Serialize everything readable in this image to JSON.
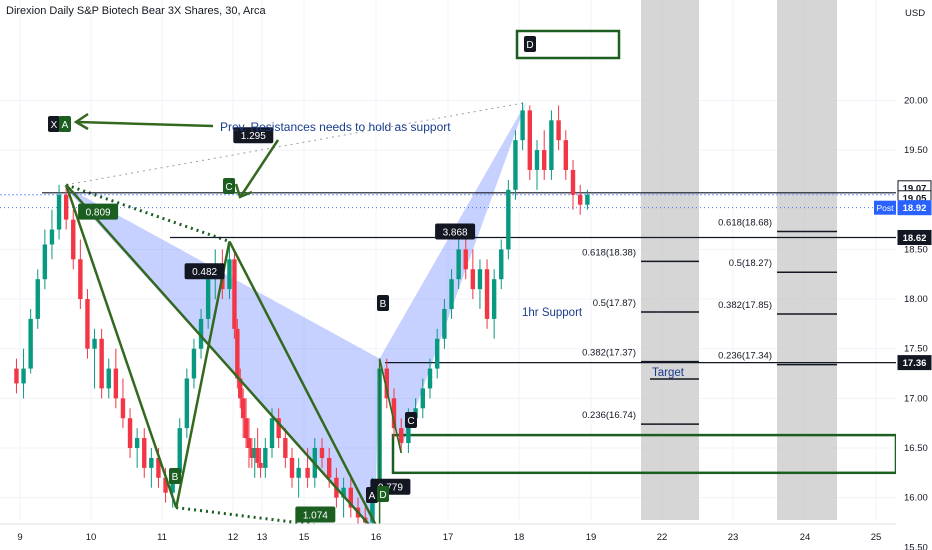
{
  "title": "Direxion Daily S&P Biotech Bear 3X Shares, 30, Arca",
  "currency": "USD",
  "chart_data": {
    "type": "candlestick",
    "y_ticks": [
      "15.50",
      "16.00",
      "16.50",
      "17.00",
      "17.50",
      "18.00",
      "18.50",
      "19.50",
      "20.00"
    ],
    "x_ticks": [
      "9",
      "10",
      "11",
      "12",
      "13",
      "15",
      "16",
      "17",
      "18",
      "19",
      "22",
      "23",
      "24",
      "25"
    ],
    "price_badges": [
      {
        "text": "19.07",
        "price": 19.07,
        "bg": "#ffffff",
        "fg": "#131722",
        "border": "#131722"
      },
      {
        "text": "19.05",
        "price": 19.05,
        "bg": "#ffffff",
        "fg": "#131722",
        "border": "#131722"
      },
      {
        "text": "18.92",
        "price": 18.92,
        "bg": "#2962ff",
        "fg": "#ffffff",
        "border": "#2962ff",
        "tag": "Post"
      },
      {
        "text": "18.62",
        "price": 18.62,
        "bg": "#131722",
        "fg": "#ffffff",
        "border": "#131722"
      },
      {
        "text": "17.36",
        "price": 17.36,
        "bg": "#131722",
        "fg": "#ffffff",
        "border": "#131722"
      }
    ],
    "pattern_points": [
      {
        "label": "X",
        "date": 9.6,
        "price": 19.15
      },
      {
        "label": "A",
        "date": 9.65,
        "price": 19.15
      },
      {
        "label": "B",
        "date": 11.2,
        "price": 15.9
      },
      {
        "label": "C",
        "date": 11.95,
        "price": 18.58
      },
      {
        "label": "A",
        "date": 15.95,
        "price": 15.65
      },
      {
        "label": "D",
        "date": 16.05,
        "price": 15.65
      },
      {
        "label": "B",
        "date": 16.05,
        "price": 17.4
      },
      {
        "label": "C",
        "date": 16.45,
        "price": 16.45
      },
      {
        "label": "D",
        "date": 18.1,
        "price": 19.98
      }
    ],
    "ratios": [
      {
        "text": "1.295",
        "date": 12.7,
        "price": 19.65
      },
      {
        "text": "0.809",
        "date": 10.1,
        "price": 18.88
      },
      {
        "text": "0.482",
        "date": 11.6,
        "price": 18.28
      },
      {
        "text": "1.074",
        "date": 13.8,
        "price": 15.83
      },
      {
        "text": "0.779",
        "date": 16.2,
        "price": 16.11
      },
      {
        "text": "3.868",
        "date": 17.1,
        "price": 18.68
      }
    ],
    "fib_levels_left": [
      {
        "text": "0.618(18.38)",
        "price": 18.38
      },
      {
        "text": "0.5(17.87)",
        "price": 17.87
      },
      {
        "text": "0.382(17.37)",
        "price": 17.37
      },
      {
        "text": "0.236(16.74)",
        "price": 16.74
      }
    ],
    "fib_levels_right": [
      {
        "text": "0.618(18.68)",
        "price": 18.68
      },
      {
        "text": "0.5(18.27)",
        "price": 18.27
      },
      {
        "text": "0.382(17.85)",
        "price": 17.85
      },
      {
        "text": "0.236(17.34)",
        "price": 17.34
      }
    ],
    "annotations": [
      {
        "text": "Prev. Resistances needs to hold as support",
        "date": 11.7,
        "price": 19.22
      },
      {
        "text": "1hr Support",
        "date": 17.4,
        "price": 17.42
      },
      {
        "text": "Target",
        "date": 22.1,
        "price": 16.8
      }
    ],
    "horizontal_lines": [
      19.07,
      18.62,
      17.36
    ],
    "candles": [
      [
        8.95,
        17.3,
        17.4,
        17.05,
        17.15
      ],
      [
        9.05,
        17.15,
        17.5,
        17.0,
        17.3
      ],
      [
        9.15,
        17.3,
        17.9,
        17.25,
        17.8
      ],
      [
        9.25,
        17.8,
        18.3,
        17.7,
        18.2
      ],
      [
        9.35,
        18.2,
        18.7,
        18.1,
        18.55
      ],
      [
        9.45,
        18.55,
        18.9,
        18.4,
        18.7
      ],
      [
        9.55,
        18.7,
        19.15,
        18.6,
        19.05
      ],
      [
        9.65,
        19.05,
        19.15,
        18.7,
        18.8
      ],
      [
        9.75,
        18.8,
        18.9,
        18.3,
        18.4
      ],
      [
        9.85,
        18.4,
        18.6,
        17.9,
        18.0
      ],
      [
        9.95,
        18.0,
        18.1,
        17.4,
        17.5
      ],
      [
        10.05,
        17.5,
        17.7,
        17.1,
        17.6
      ],
      [
        10.15,
        17.6,
        17.7,
        17.0,
        17.1
      ],
      [
        10.25,
        17.1,
        17.4,
        17.0,
        17.3
      ],
      [
        10.35,
        17.3,
        17.5,
        16.9,
        17.0
      ],
      [
        10.45,
        17.0,
        17.2,
        16.7,
        16.8
      ],
      [
        10.55,
        16.8,
        16.9,
        16.4,
        16.5
      ],
      [
        10.65,
        16.5,
        16.7,
        16.3,
        16.6
      ],
      [
        10.75,
        16.6,
        16.7,
        16.2,
        16.3
      ],
      [
        10.85,
        16.3,
        16.5,
        16.1,
        16.4
      ],
      [
        10.95,
        16.4,
        16.5,
        16.1,
        16.2
      ],
      [
        11.05,
        16.2,
        16.3,
        15.95,
        16.05
      ],
      [
        11.15,
        16.05,
        16.3,
        15.9,
        16.25
      ],
      [
        11.25,
        16.25,
        16.8,
        16.2,
        16.7
      ],
      [
        11.35,
        16.7,
        17.3,
        16.6,
        17.2
      ],
      [
        11.45,
        17.2,
        17.6,
        17.1,
        17.5
      ],
      [
        11.55,
        17.5,
        17.9,
        17.4,
        17.8
      ],
      [
        11.65,
        17.8,
        18.3,
        17.7,
        18.2
      ],
      [
        11.75,
        18.2,
        18.5,
        18.0,
        18.3
      ],
      [
        11.85,
        18.3,
        18.5,
        18.0,
        18.1
      ],
      [
        11.95,
        18.1,
        18.58,
        18.0,
        18.4
      ],
      [
        12.05,
        18.4,
        18.5,
        17.6,
        17.7
      ],
      [
        12.15,
        17.7,
        17.8,
        17.1,
        17.2
      ],
      [
        12.25,
        17.2,
        17.3,
        16.9,
        17.0
      ],
      [
        12.35,
        17.0,
        17.1,
        16.6,
        16.8
      ],
      [
        12.45,
        16.8,
        17.0,
        16.5,
        16.6
      ],
      [
        12.55,
        16.6,
        16.8,
        16.3,
        16.5
      ],
      [
        12.65,
        16.5,
        16.6,
        16.3,
        16.4
      ],
      [
        12.75,
        16.4,
        16.6,
        16.2,
        16.5
      ],
      [
        12.85,
        16.5,
        16.7,
        16.3,
        16.35
      ],
      [
        12.95,
        16.35,
        16.5,
        16.2,
        16.3
      ],
      [
        13.05,
        16.3,
        16.6,
        16.2,
        16.5
      ],
      [
        13.15,
        16.5,
        16.9,
        16.4,
        16.8
      ],
      [
        13.25,
        16.8,
        16.9,
        16.5,
        16.6
      ],
      [
        13.35,
        16.6,
        16.7,
        16.3,
        16.4
      ],
      [
        13.45,
        16.4,
        16.5,
        16.1,
        16.2
      ],
      [
        13.55,
        16.2,
        16.4,
        16.0,
        16.3
      ],
      [
        15.05,
        16.3,
        16.5,
        16.1,
        16.2
      ],
      [
        15.15,
        16.2,
        16.6,
        16.1,
        16.5
      ],
      [
        15.25,
        16.5,
        16.6,
        16.3,
        16.4
      ],
      [
        15.35,
        16.4,
        16.5,
        16.1,
        16.2
      ],
      [
        15.45,
        16.2,
        16.3,
        15.9,
        16.0
      ],
      [
        15.55,
        16.0,
        16.2,
        15.8,
        16.1
      ],
      [
        15.65,
        16.1,
        16.2,
        15.8,
        15.9
      ],
      [
        15.75,
        15.9,
        16.0,
        15.7,
        15.8
      ],
      [
        15.85,
        15.8,
        15.9,
        15.65,
        15.75
      ],
      [
        15.95,
        15.75,
        16.2,
        15.65,
        16.1
      ],
      [
        16.05,
        16.1,
        17.4,
        16.05,
        17.3
      ],
      [
        16.15,
        17.3,
        17.4,
        16.9,
        17.0
      ],
      [
        16.25,
        17.0,
        17.1,
        16.6,
        16.7
      ],
      [
        16.35,
        16.7,
        16.8,
        16.45,
        16.55
      ],
      [
        16.45,
        16.55,
        16.9,
        16.45,
        16.8
      ],
      [
        16.55,
        16.8,
        17.0,
        16.7,
        16.9
      ],
      [
        16.65,
        16.9,
        17.2,
        16.8,
        17.1
      ],
      [
        16.75,
        17.1,
        17.4,
        17.0,
        17.3
      ],
      [
        16.85,
        17.3,
        17.7,
        17.2,
        17.6
      ],
      [
        16.95,
        17.6,
        18.0,
        17.5,
        17.9
      ],
      [
        17.05,
        17.9,
        18.3,
        17.8,
        18.2
      ],
      [
        17.15,
        18.2,
        18.6,
        18.1,
        18.5
      ],
      [
        17.25,
        18.5,
        18.7,
        18.2,
        18.3
      ],
      [
        17.35,
        18.3,
        18.5,
        18.0,
        18.1
      ],
      [
        17.45,
        18.1,
        18.4,
        17.9,
        18.3
      ],
      [
        17.55,
        18.3,
        18.4,
        17.7,
        17.8
      ],
      [
        17.65,
        17.8,
        18.3,
        17.6,
        18.2
      ],
      [
        17.75,
        18.2,
        18.6,
        18.1,
        18.5
      ],
      [
        17.85,
        18.5,
        19.2,
        18.4,
        19.1
      ],
      [
        17.95,
        19.1,
        19.7,
        19.0,
        19.6
      ],
      [
        18.05,
        19.6,
        19.98,
        19.5,
        19.9
      ],
      [
        18.15,
        19.9,
        19.95,
        19.2,
        19.3
      ],
      [
        18.25,
        19.3,
        19.6,
        19.1,
        19.5
      ],
      [
        18.35,
        19.5,
        19.7,
        19.2,
        19.3
      ],
      [
        18.45,
        19.3,
        19.9,
        19.2,
        19.8
      ],
      [
        18.55,
        19.8,
        19.95,
        19.5,
        19.6
      ],
      [
        18.65,
        19.6,
        19.7,
        19.2,
        19.3
      ],
      [
        18.75,
        19.3,
        19.4,
        18.9,
        19.05
      ],
      [
        18.85,
        19.05,
        19.15,
        18.85,
        18.95
      ],
      [
        18.95,
        18.95,
        19.1,
        18.9,
        19.05
      ]
    ]
  }
}
